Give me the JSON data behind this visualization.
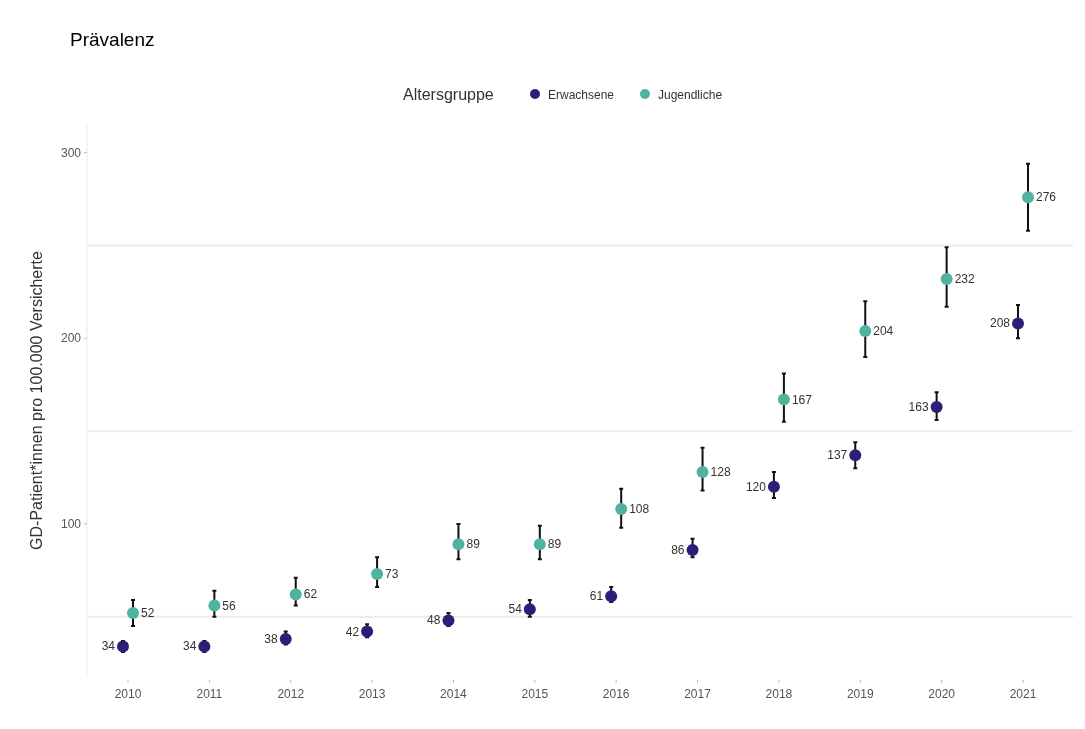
{
  "chart_data": {
    "type": "scatter",
    "title": "Prävalenz",
    "ylabel": "GD-Patient*innen pro 100.000 Versicherte",
    "legend_title": "Altersgruppe",
    "legend": "top",
    "marker": "circle",
    "data_labels": true,
    "grid": false,
    "categories": [
      "2010",
      "2011",
      "2012",
      "2013",
      "2014",
      "2015",
      "2016",
      "2017",
      "2018",
      "2019",
      "2020",
      "2021"
    ],
    "ylim": [
      17,
      316
    ],
    "yticks": [
      100,
      200,
      300
    ],
    "ref_lines": [
      {
        "axis": "y",
        "value": 50,
        "color": "#ebebeb"
      },
      {
        "axis": "y",
        "value": 150,
        "color": "#ebebeb"
      },
      {
        "axis": "y",
        "value": 250,
        "color": "#ebebeb"
      }
    ],
    "series": [
      {
        "name": "Erwachsene",
        "color": "#2d1e7a",
        "values": [
          34,
          34,
          38,
          42,
          48,
          54,
          61,
          86,
          120,
          137,
          163,
          208
        ],
        "errors": [
          [
            31,
            37
          ],
          [
            31,
            37
          ],
          [
            35,
            42
          ],
          [
            39,
            46
          ],
          [
            45,
            52
          ],
          [
            50,
            59
          ],
          [
            58,
            66
          ],
          [
            82,
            92
          ],
          [
            114,
            128
          ],
          [
            130,
            144
          ],
          [
            156,
            171
          ],
          [
            200,
            218
          ]
        ]
      },
      {
        "name": "Jugendliche",
        "color": "#4fb3a0",
        "values": [
          52,
          56,
          62,
          73,
          89,
          89,
          108,
          128,
          167,
          204,
          232,
          276
        ],
        "errors": [
          [
            45,
            59
          ],
          [
            50,
            64
          ],
          [
            56,
            71
          ],
          [
            66,
            82
          ],
          [
            81,
            100
          ],
          [
            81,
            99
          ],
          [
            98,
            119
          ],
          [
            118,
            141
          ],
          [
            155,
            181
          ],
          [
            190,
            220
          ],
          [
            217,
            249
          ],
          [
            258,
            294
          ]
        ]
      }
    ]
  }
}
